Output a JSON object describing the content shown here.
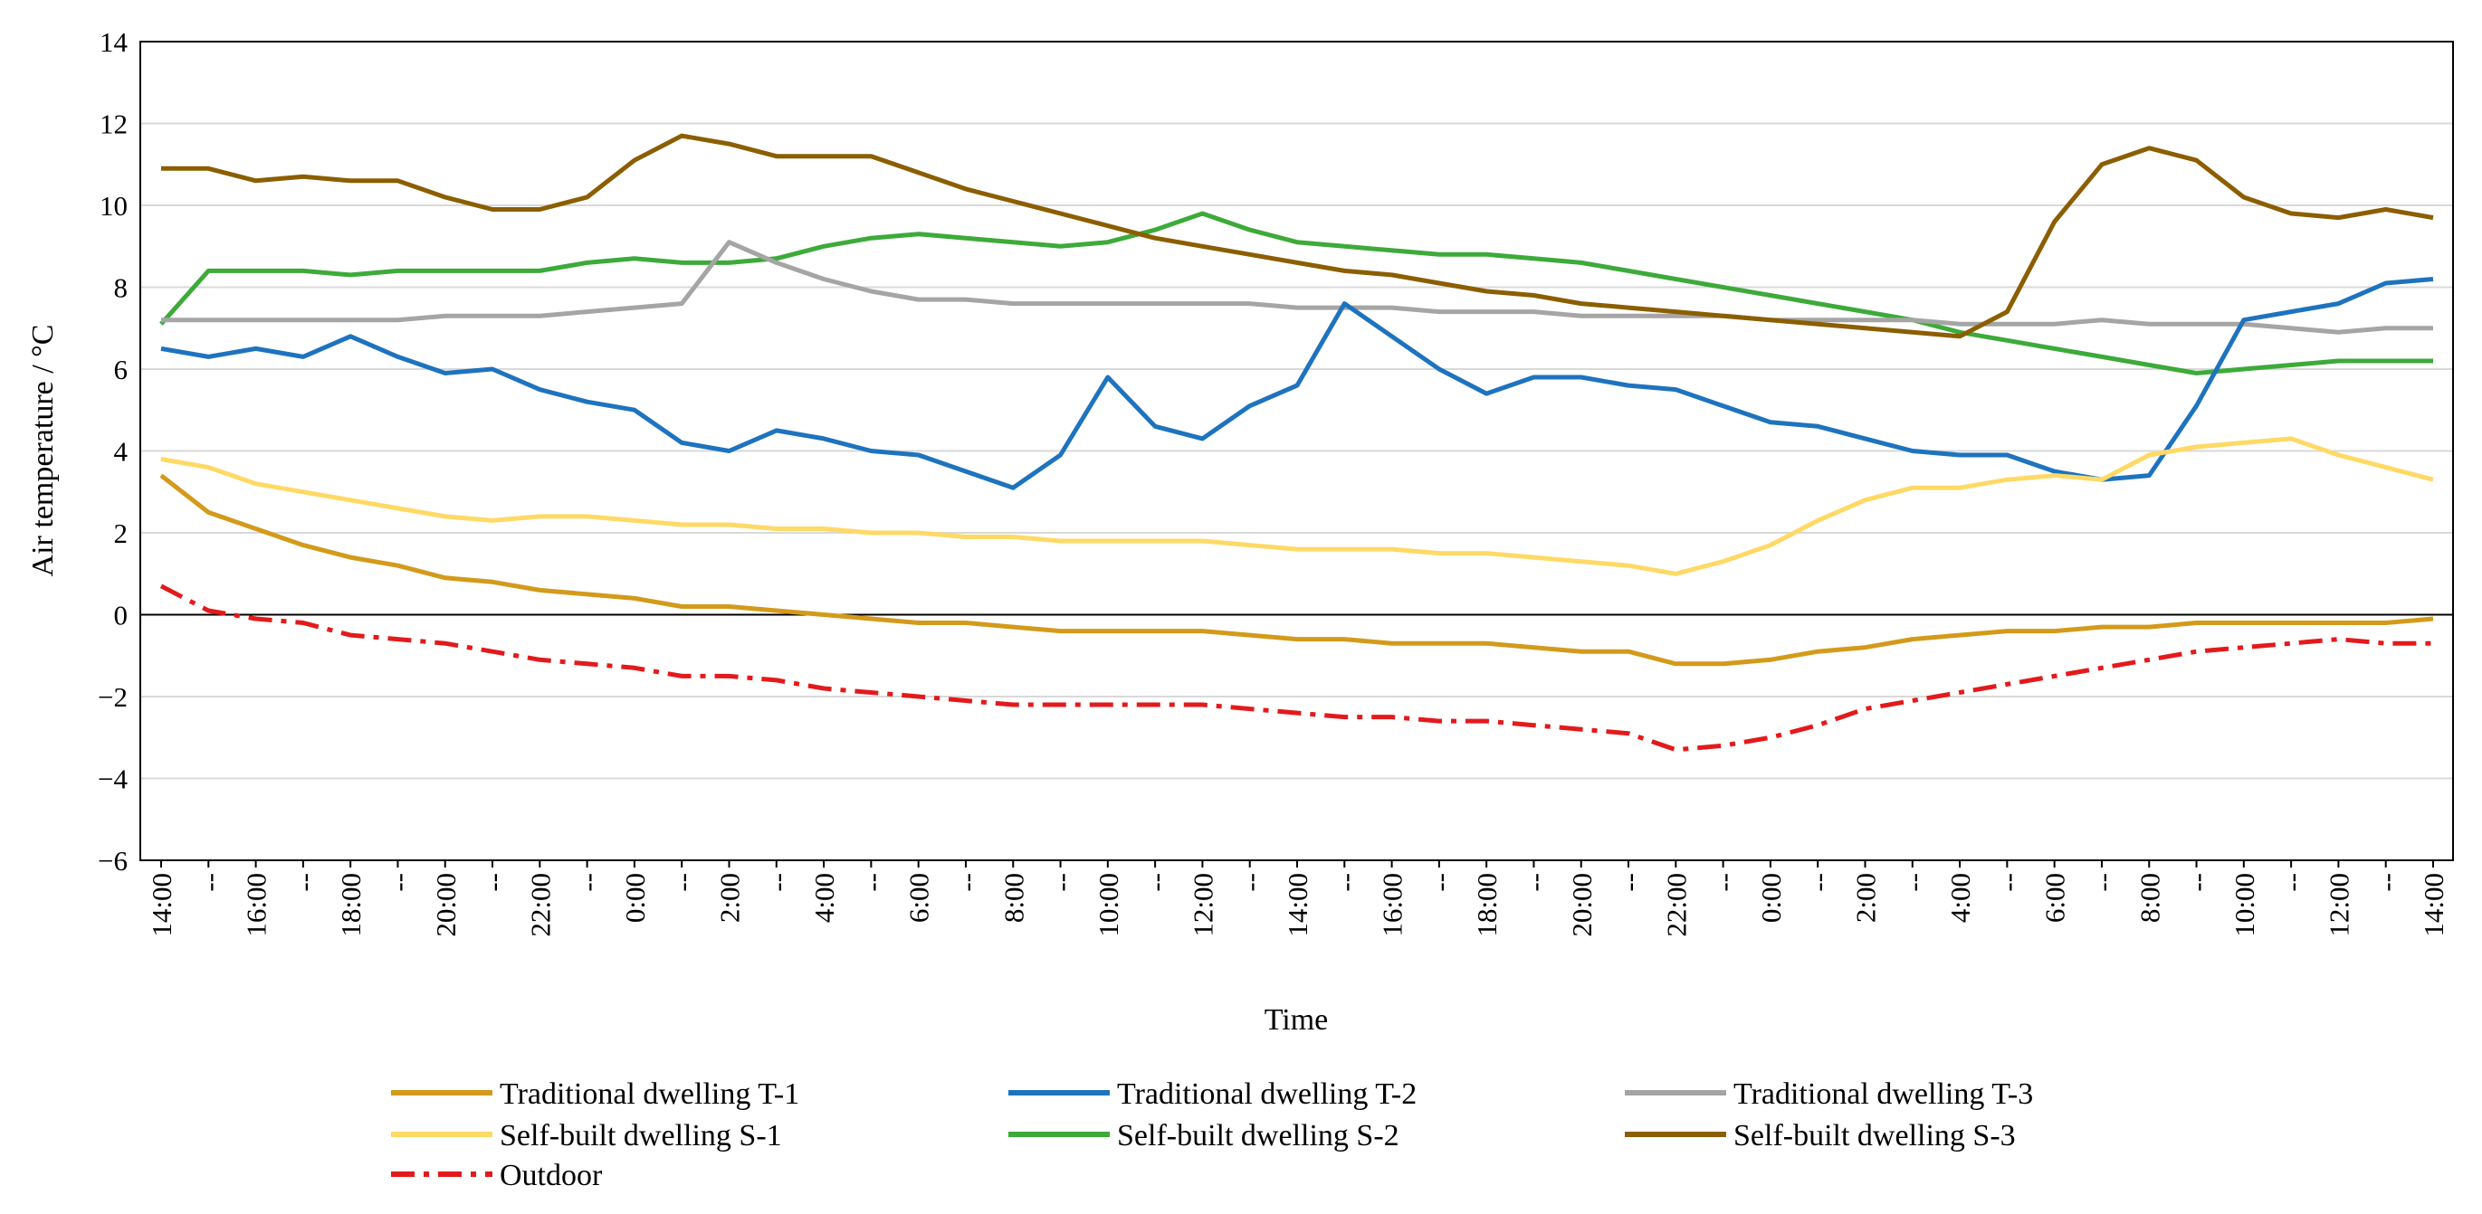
{
  "chart_data": {
    "type": "line",
    "title": "",
    "xlabel": "Time",
    "ylabel": "Air temperature / °C",
    "ylim": [
      -6,
      14
    ],
    "yticks": [
      -6,
      -4,
      -2,
      0,
      2,
      4,
      6,
      8,
      10,
      12,
      14
    ],
    "ytick_labels": [
      "−6",
      "−4",
      "−2",
      "0",
      "2",
      "4",
      "6",
      "8",
      "10",
      "12",
      "14"
    ],
    "grid": "horizontal",
    "legend_position": "bottom",
    "x_tick_labels": [
      "14:00",
      "--",
      "16:00",
      "--",
      "18:00",
      "--",
      "20:00",
      "--",
      "22:00",
      "--",
      "0:00",
      "--",
      "2:00",
      "--",
      "4:00",
      "--",
      "6:00",
      "--",
      "8:00",
      "--",
      "10:00",
      "--",
      "12:00",
      "--",
      "14:00",
      "--",
      "16:00",
      "--",
      "18:00",
      "--",
      "20:00",
      "--",
      "22:00",
      "--",
      "0:00",
      "--",
      "2:00",
      "--",
      "4:00",
      "--",
      "6:00",
      "--",
      "8:00",
      "--",
      "10:00",
      "--",
      "12:00",
      "--",
      "14:00"
    ],
    "x_count": 49,
    "series": [
      {
        "name": "Traditional dwelling T-1",
        "color": "#D39A1B",
        "style": "solid",
        "values": [
          3.4,
          2.5,
          2.1,
          1.7,
          1.4,
          1.2,
          0.9,
          0.8,
          0.6,
          0.5,
          0.4,
          0.2,
          0.2,
          0.1,
          0.0,
          -0.1,
          -0.2,
          -0.2,
          -0.3,
          -0.4,
          -0.4,
          -0.4,
          -0.4,
          -0.5,
          -0.6,
          -0.6,
          -0.7,
          -0.7,
          -0.7,
          -0.8,
          -0.9,
          -0.9,
          -1.2,
          -1.2,
          -1.1,
          -0.9,
          -0.8,
          -0.6,
          -0.5,
          -0.4,
          -0.4,
          -0.3,
          -0.3,
          -0.2,
          -0.2,
          -0.2,
          -0.2,
          -0.2,
          -0.1
        ]
      },
      {
        "name": "Traditional dwelling T-2",
        "color": "#1E73BE",
        "style": "solid",
        "values": [
          6.5,
          6.3,
          6.5,
          6.3,
          6.8,
          6.3,
          5.9,
          6.0,
          5.5,
          5.2,
          5.0,
          4.2,
          4.0,
          4.5,
          4.3,
          4.0,
          3.9,
          3.5,
          3.1,
          3.9,
          5.8,
          4.6,
          4.3,
          5.1,
          5.6,
          7.6,
          6.8,
          6.0,
          5.4,
          5.8,
          5.8,
          5.6,
          5.5,
          5.1,
          4.7,
          4.6,
          4.3,
          4.0,
          3.9,
          3.9,
          3.5,
          3.3,
          3.4,
          5.1,
          7.2,
          7.4,
          7.6,
          8.1,
          8.2
        ]
      },
      {
        "name": "Traditional dwelling T-3",
        "color": "#A5A5A5",
        "style": "solid",
        "values": [
          7.2,
          7.2,
          7.2,
          7.2,
          7.2,
          7.2,
          7.3,
          7.3,
          7.3,
          7.4,
          7.5,
          7.6,
          9.1,
          8.6,
          8.2,
          7.9,
          7.7,
          7.7,
          7.6,
          7.6,
          7.6,
          7.6,
          7.6,
          7.6,
          7.5,
          7.5,
          7.5,
          7.4,
          7.4,
          7.4,
          7.3,
          7.3,
          7.3,
          7.3,
          7.2,
          7.2,
          7.2,
          7.2,
          7.1,
          7.1,
          7.1,
          7.2,
          7.1,
          7.1,
          7.1,
          7.0,
          6.9,
          7.0,
          7.0
        ]
      },
      {
        "name": "Self-built dwelling S-1",
        "color": "#FFD966",
        "style": "solid",
        "values": [
          3.8,
          3.6,
          3.2,
          3.0,
          2.8,
          2.6,
          2.4,
          2.3,
          2.4,
          2.4,
          2.3,
          2.2,
          2.2,
          2.1,
          2.1,
          2.0,
          2.0,
          1.9,
          1.9,
          1.8,
          1.8,
          1.8,
          1.8,
          1.7,
          1.6,
          1.6,
          1.6,
          1.5,
          1.5,
          1.4,
          1.3,
          1.2,
          1.0,
          1.3,
          1.7,
          2.3,
          2.8,
          3.1,
          3.1,
          3.3,
          3.4,
          3.3,
          3.9,
          4.1,
          4.2,
          4.3,
          3.9,
          3.6,
          3.3
        ]
      },
      {
        "name": "Self-built dwelling S-2",
        "color": "#3DAA3A",
        "style": "solid",
        "values": [
          7.1,
          8.4,
          8.4,
          8.4,
          8.3,
          8.4,
          8.4,
          8.4,
          8.4,
          8.6,
          8.7,
          8.6,
          8.6,
          8.7,
          9.0,
          9.2,
          9.3,
          9.2,
          9.1,
          9.0,
          9.1,
          9.4,
          9.8,
          9.4,
          9.1,
          9.0,
          8.9,
          8.8,
          8.8,
          8.7,
          8.6,
          8.4,
          8.2,
          8.0,
          7.8,
          7.6,
          7.4,
          7.2,
          6.9,
          6.7,
          6.5,
          6.3,
          6.1,
          5.9,
          6.0,
          6.1,
          6.2,
          6.2,
          6.2
        ]
      },
      {
        "name": "Self-built dwelling S-3",
        "color": "#8B5E00",
        "style": "solid",
        "values": [
          10.9,
          10.9,
          10.6,
          10.7,
          10.6,
          10.6,
          10.2,
          9.9,
          9.9,
          10.2,
          11.1,
          11.7,
          11.5,
          11.2,
          11.2,
          11.2,
          10.8,
          10.4,
          10.1,
          9.8,
          9.5,
          9.2,
          9.0,
          8.8,
          8.6,
          8.4,
          8.3,
          8.1,
          7.9,
          7.8,
          7.6,
          7.5,
          7.4,
          7.3,
          7.2,
          7.1,
          7.0,
          6.9,
          6.8,
          7.4,
          9.6,
          11.0,
          11.4,
          11.1,
          10.2,
          9.8,
          9.7,
          9.9,
          9.7
        ]
      },
      {
        "name": "Outdoor",
        "color": "#E31A1C",
        "style": "dashdot",
        "values": [
          0.7,
          0.1,
          -0.1,
          -0.2,
          -0.5,
          -0.6,
          -0.7,
          -0.9,
          -1.1,
          -1.2,
          -1.3,
          -1.5,
          -1.5,
          -1.6,
          -1.8,
          -1.9,
          -2.0,
          -2.1,
          -2.2,
          -2.2,
          -2.2,
          -2.2,
          -2.2,
          -2.3,
          -2.4,
          -2.5,
          -2.5,
          -2.6,
          -2.6,
          -2.7,
          -2.8,
          -2.9,
          -3.3,
          -3.2,
          -3.0,
          -2.7,
          -2.3,
          -2.1,
          -1.9,
          -1.7,
          -1.5,
          -1.3,
          -1.1,
          -0.9,
          -0.8,
          -0.7,
          -0.6,
          -0.7,
          -0.7
        ]
      }
    ]
  }
}
